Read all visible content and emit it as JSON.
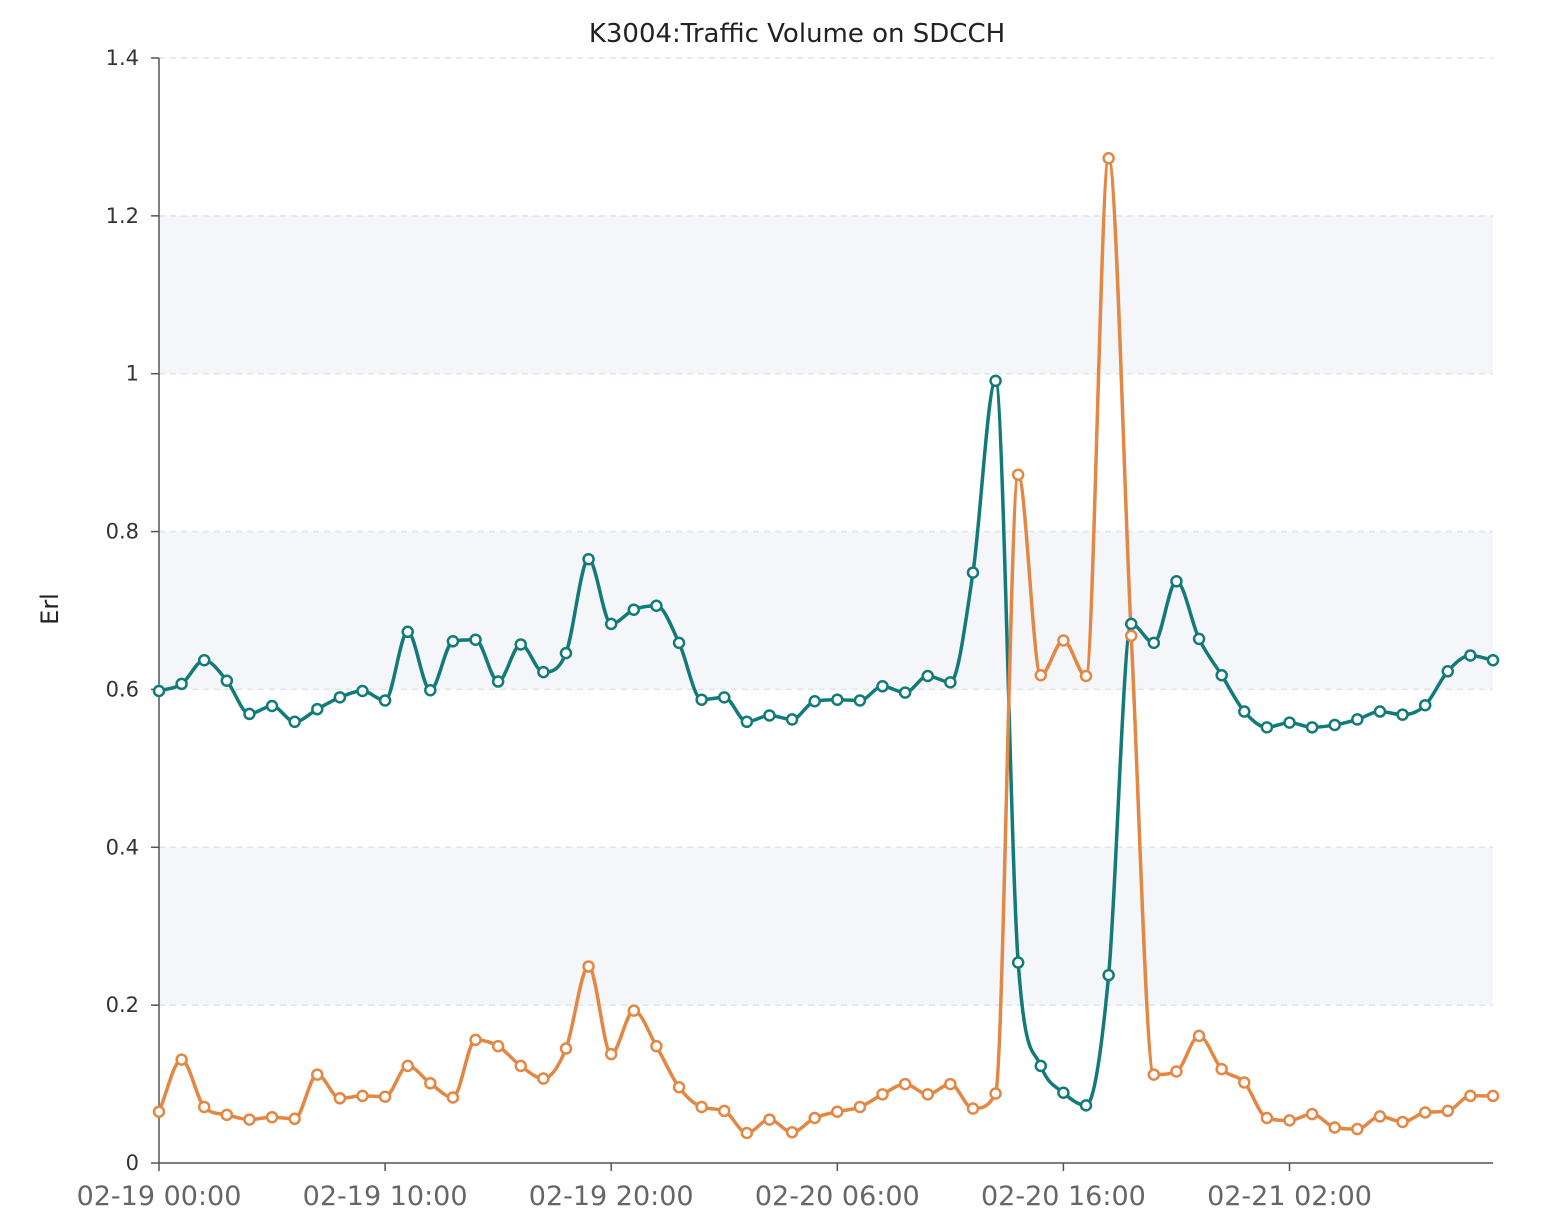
{
  "chart_data": {
    "type": "line",
    "title": "K3004:Traffic Volume on SDCCH",
    "ylabel": "Erl",
    "xlabel": "",
    "ylim": [
      0,
      1.4
    ],
    "y_ticks": [
      "0",
      "0.2",
      "0.4",
      "0.6",
      "0.8",
      "1",
      "1.2",
      "1.4"
    ],
    "x_ticks": [
      "02-19 00:00",
      "02-19 10:00",
      "02-19 20:00",
      "02-20 06:00",
      "02-20 16:00",
      "02-21 02:00"
    ],
    "grid": true,
    "legend": "none",
    "interval_hours": 1,
    "x_start": "02-19 00:00",
    "series": [
      {
        "color": "#137a7a",
        "values": [
          0.598,
          0.607,
          0.637,
          0.611,
          0.569,
          0.579,
          0.559,
          0.575,
          0.59,
          0.598,
          0.586,
          0.673,
          0.599,
          0.661,
          0.663,
          0.61,
          0.657,
          0.622,
          0.646,
          0.765,
          0.683,
          0.701,
          0.706,
          0.659,
          0.587,
          0.59,
          0.559,
          0.567,
          0.562,
          0.585,
          0.587,
          0.586,
          0.604,
          0.596,
          0.617,
          0.609,
          0.748,
          0.991,
          0.254,
          0.123,
          0.089,
          0.073,
          0.238,
          0.683,
          0.659,
          0.737,
          0.664,
          0.618,
          0.572,
          0.552,
          0.558,
          0.552,
          0.555,
          0.562,
          0.572,
          0.568,
          0.58,
          0.623,
          0.643,
          0.637
        ]
      },
      {
        "color": "#e28744",
        "values": [
          0.065,
          0.131,
          0.071,
          0.061,
          0.055,
          0.058,
          0.056,
          0.112,
          0.082,
          0.085,
          0.084,
          0.123,
          0.101,
          0.083,
          0.156,
          0.148,
          0.123,
          0.107,
          0.145,
          0.249,
          0.138,
          0.193,
          0.148,
          0.096,
          0.071,
          0.066,
          0.038,
          0.055,
          0.039,
          0.057,
          0.065,
          0.071,
          0.087,
          0.1,
          0.087,
          0.1,
          0.069,
          0.088,
          0.872,
          0.618,
          0.662,
          0.617,
          1.273,
          0.668,
          0.112,
          0.116,
          0.161,
          0.119,
          0.102,
          0.057,
          0.054,
          0.062,
          0.045,
          0.043,
          0.059,
          0.052,
          0.064,
          0.066,
          0.085,
          0.085
        ]
      }
    ]
  }
}
